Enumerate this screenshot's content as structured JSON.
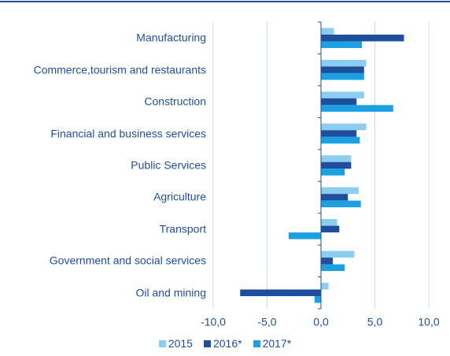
{
  "chart_data": {
    "type": "hbar",
    "categories": [
      "Manufacturing",
      "Commerce,tourism and restaurants",
      "Construction",
      "Financial and business services",
      "Public Services",
      "Agriculture",
      "Transport",
      "Government and social services",
      "Oil and mining"
    ],
    "series": [
      {
        "name": "2015",
        "color": "#8dcdef",
        "values": [
          1.2,
          4.2,
          4.0,
          4.2,
          2.8,
          3.5,
          1.5,
          3.1,
          0.7
        ]
      },
      {
        "name": "2016*",
        "color": "#1f4e9c",
        "values": [
          7.7,
          4.0,
          3.3,
          3.3,
          2.8,
          2.5,
          1.7,
          1.1,
          -7.5
        ]
      },
      {
        "name": "2017*",
        "color": "#1ba1e2",
        "values": [
          3.8,
          4.0,
          6.7,
          3.6,
          2.2,
          3.7,
          -3.0,
          2.2,
          -0.6
        ]
      }
    ],
    "xlim": [
      -10,
      10
    ],
    "xticks": [
      {
        "value": -10,
        "label": "-10,0"
      },
      {
        "value": -5,
        "label": "-5,0"
      },
      {
        "value": 0,
        "label": "0,0"
      },
      {
        "value": 5,
        "label": "5,0"
      },
      {
        "value": 10,
        "label": "10,0"
      }
    ],
    "grid": true
  }
}
